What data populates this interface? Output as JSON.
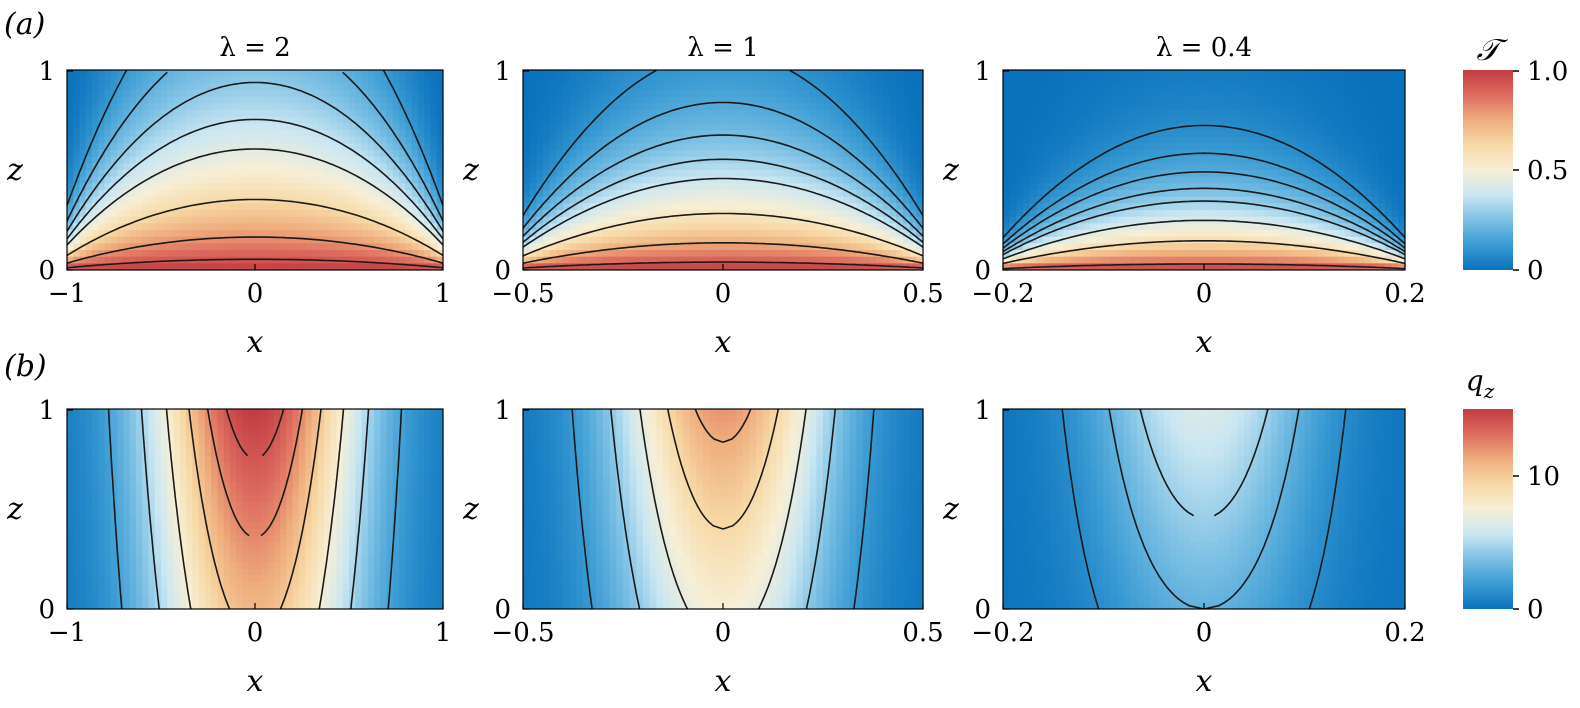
{
  "figure": {
    "row_a": {
      "label": "(a)",
      "colorbar": {
        "title": "𝒯",
        "ticks": [
          "0",
          "0.5",
          "1.0"
        ],
        "range": [
          0,
          1
        ]
      }
    },
    "row_b": {
      "label": "(b)",
      "colorbar": {
        "title": "q",
        "title_sub": "z",
        "ticks": [
          "0",
          "10"
        ],
        "range": [
          0,
          15
        ]
      }
    },
    "colormap": [
      "#0a72bd",
      "#3a9bd3",
      "#7cc0e4",
      "#cbe7f2",
      "#f7efd6",
      "#f7d9a6",
      "#efad7d",
      "#dd6c5f",
      "#c23b42"
    ],
    "contour_color": "#1a1a1a",
    "x_label": "x",
    "z_label": "z"
  },
  "chart_data": [
    {
      "type": "heatmap",
      "panel": "a1",
      "row": "a",
      "title": "λ = 2",
      "xlabel": "x",
      "ylabel": "z",
      "xlim": [
        -1,
        1
      ],
      "ylim": [
        0,
        1
      ],
      "xticks": [
        "−1",
        "0",
        "1"
      ],
      "yticks": [
        "0",
        "1"
      ],
      "variable": "T",
      "colorbar_range": [
        0,
        1
      ]
    },
    {
      "type": "heatmap",
      "panel": "a2",
      "row": "a",
      "title": "λ = 1",
      "xlabel": "x",
      "ylabel": "z",
      "xlim": [
        -0.5,
        0.5
      ],
      "ylim": [
        0,
        1
      ],
      "xticks": [
        "−0.5",
        "0",
        "0.5"
      ],
      "yticks": [
        "0",
        "1"
      ],
      "variable": "T",
      "colorbar_range": [
        0,
        1
      ]
    },
    {
      "type": "heatmap",
      "panel": "a3",
      "row": "a",
      "title": "λ = 0.4",
      "xlabel": "x",
      "ylabel": "z",
      "xlim": [
        -0.2,
        0.2
      ],
      "ylim": [
        0,
        1
      ],
      "xticks": [
        "−0.2",
        "0",
        "0.2"
      ],
      "yticks": [
        "0",
        "1"
      ],
      "variable": "T",
      "colorbar_range": [
        0,
        1
      ]
    },
    {
      "type": "heatmap",
      "panel": "b1",
      "row": "b",
      "xlabel": "x",
      "ylabel": "z",
      "xlim": [
        -1,
        1
      ],
      "ylim": [
        0,
        1
      ],
      "xticks": [
        "−1",
        "0",
        "1"
      ],
      "yticks": [
        "0",
        "1"
      ],
      "variable": "q_z",
      "colorbar_range": [
        0,
        15
      ]
    },
    {
      "type": "heatmap",
      "panel": "b2",
      "row": "b",
      "xlabel": "x",
      "ylabel": "z",
      "xlim": [
        -0.5,
        0.5
      ],
      "ylim": [
        0,
        1
      ],
      "xticks": [
        "−0.5",
        "0",
        "0.5"
      ],
      "yticks": [
        "0",
        "1"
      ],
      "variable": "q_z",
      "colorbar_range": [
        0,
        15
      ]
    },
    {
      "type": "heatmap",
      "panel": "b3",
      "row": "b",
      "xlabel": "x",
      "ylabel": "z",
      "xlim": [
        -0.2,
        0.2
      ],
      "ylim": [
        0,
        1
      ],
      "xticks": [
        "−0.2",
        "0",
        "0.2"
      ],
      "yticks": [
        "0",
        "1"
      ],
      "variable": "q_z",
      "colorbar_range": [
        0,
        15
      ]
    }
  ]
}
